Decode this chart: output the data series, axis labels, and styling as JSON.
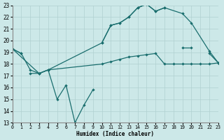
{
  "xlabel": "Humidex (Indice chaleur)",
  "background_color": "#cce8e8",
  "grid_color": "#b0d0d0",
  "line_color": "#1a6e6e",
  "xlim": [
    0,
    23
  ],
  "ylim": [
    13,
    23
  ],
  "xticks": [
    0,
    1,
    2,
    3,
    4,
    5,
    6,
    7,
    8,
    9,
    10,
    11,
    12,
    13,
    14,
    15,
    16,
    17,
    18,
    19,
    20,
    21,
    22,
    23
  ],
  "yticks": [
    13,
    14,
    15,
    16,
    17,
    18,
    19,
    20,
    21,
    22,
    23
  ],
  "line_zigzag": {
    "segments": [
      {
        "x": [
          0,
          1
        ],
        "y": [
          19.3,
          18.9
        ]
      },
      {
        "x": [
          2,
          3,
          4,
          5,
          6,
          7
        ],
        "y": [
          17.2,
          17.2,
          17.5,
          15.0,
          16.2,
          13.0
        ]
      },
      {
        "x": [
          7,
          8,
          9
        ],
        "y": [
          13.0,
          14.5,
          15.8
        ]
      },
      {
        "x": [
          10,
          11,
          12,
          13,
          14,
          15,
          16,
          17
        ],
        "y": [
          19.8,
          21.3,
          21.5,
          22.0,
          22.8,
          23.1,
          22.5,
          22.8
        ]
      },
      {
        "x": [
          19,
          20
        ],
        "y": [
          19.4,
          19.4
        ]
      },
      {
        "x": [
          22,
          23
        ],
        "y": [
          18.9,
          18.1
        ]
      }
    ]
  },
  "line_flat": {
    "segments": [
      {
        "x": [
          0,
          1,
          2,
          3,
          4
        ],
        "y": [
          19.3,
          18.9,
          17.5,
          17.2,
          17.5
        ]
      },
      {
        "x": [
          4,
          10,
          11,
          12,
          13,
          14,
          15,
          16,
          17,
          18,
          19,
          20,
          21,
          22,
          23
        ],
        "y": [
          17.5,
          18.0,
          18.2,
          18.4,
          18.6,
          18.7,
          18.8,
          18.9,
          18.0,
          18.0,
          18.0,
          18.0,
          18.0,
          18.0,
          18.1
        ]
      }
    ]
  },
  "line_upper": {
    "x": [
      0,
      3,
      4,
      10,
      11,
      12,
      13,
      14,
      15,
      16,
      17,
      19,
      20,
      22,
      23
    ],
    "y": [
      19.3,
      17.2,
      17.5,
      19.8,
      21.3,
      21.5,
      22.0,
      22.8,
      23.1,
      22.5,
      22.8,
      22.3,
      21.5,
      19.1,
      18.1
    ]
  }
}
